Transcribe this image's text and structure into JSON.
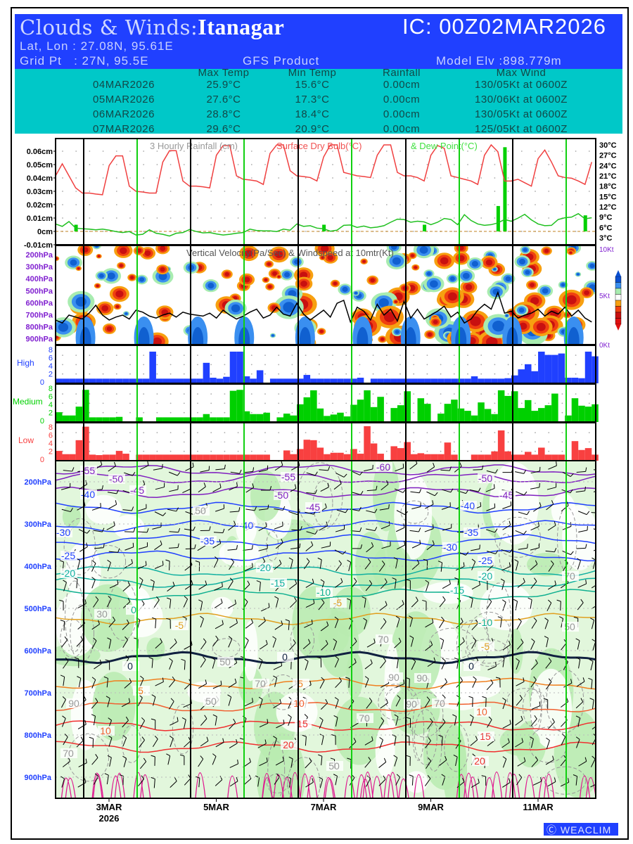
{
  "header": {
    "title_prefix": "Clouds & Winds:",
    "location": "Itanagar",
    "ic": "IC: 00Z02MAR2026",
    "latlon": "Lat, Lon : 27.08N, 95.61E",
    "grid": "Grid Pt   : 27N, 95.5E",
    "product": "GFS Product",
    "elev": "Model Elv :898.779m"
  },
  "summary": {
    "columns": [
      "Max Temp",
      "Min Temp",
      "Rainfall",
      "Max Wind"
    ],
    "rows": [
      [
        "04MAR2026",
        "25.9°C",
        "15.6°C",
        "0.00cm",
        "130/05Kt at 0600Z"
      ],
      [
        "05MAR2026",
        "27.6°C",
        "17.3°C",
        "0.00cm",
        "130/06Kt at 0600Z"
      ],
      [
        "06MAR2026",
        "28.8°C",
        "18.4°C",
        "0.00cm",
        "130/05Kt at 0600Z"
      ],
      [
        "07MAR2026",
        "29.6°C",
        "20.9°C",
        "0.00cm",
        "125/05Kt at 0600Z"
      ]
    ]
  },
  "chart_data": [
    {
      "type": "line",
      "title_parts": [
        "3 Hourly Rainfall (cm)",
        "Surface Dry Bulb(°C)",
        "& Dew Point(°C)"
      ],
      "step_hours": 3,
      "rain_ticks": [
        "0.06cm",
        "0.05cm",
        "0.04cm",
        "0.03cm",
        "0.02cm",
        "0.01cm",
        "0cm",
        "-0.01cm"
      ],
      "rain_ylim": [
        -0.01,
        0.065
      ],
      "temp_ticks": [
        "30°C",
        "27°C",
        "24°C",
        "21°C",
        "18°C",
        "15°C",
        "12°C",
        "9°C",
        "6°C",
        "3°C"
      ],
      "temp_ylim": [
        1.2,
        31.5
      ],
      "rain_bars": [
        {
          "step": 3,
          "cm": 0.005
        },
        {
          "step": 40,
          "cm": 0.005
        },
        {
          "step": 55,
          "cm": 0.005
        },
        {
          "step": 66,
          "cm": 0.019
        },
        {
          "step": 67,
          "cm": 0.063
        },
        {
          "step": 79,
          "cm": 0.012
        }
      ],
      "dry_bulb": [
        21,
        24.5,
        21,
        17.5,
        16,
        16,
        15.7,
        15.5,
        24,
        26.8,
        26.8,
        18,
        16.5,
        16.3,
        16,
        16,
        25,
        28.3,
        28.3,
        19.5,
        18,
        18,
        17.8,
        17.5,
        27,
        29.8,
        29.8,
        21,
        20,
        19.8,
        19.5,
        18.5,
        27.5,
        30,
        30,
        22.5,
        21,
        20.8,
        20.5,
        19.5,
        26.5,
        30,
        30,
        22,
        21.5,
        21,
        20.8,
        20.5,
        27,
        30,
        30,
        22,
        21,
        21,
        20.5,
        19.5,
        27,
        29.8,
        29,
        21,
        20.5,
        20,
        19.5,
        18.5,
        27,
        30,
        28,
        19.5,
        19.5,
        20,
        19,
        18,
        26,
        28.5,
        25,
        21,
        20.5,
        20.3,
        19.5,
        18.5,
        25
      ],
      "dew_point": [
        7,
        6.3,
        7.7,
        5.8,
        5.6,
        5.5,
        5.3,
        5.5,
        5.2,
        4.8,
        4.5,
        4.8,
        3.8,
        4,
        5.3,
        4.3,
        4,
        3.5,
        4.3,
        4.5,
        5.4,
        4.8,
        4.4,
        4.5,
        4.1,
        3.8,
        4,
        4.3,
        4.5,
        5.5,
        5.1,
        5,
        5,
        4.8,
        5.5,
        5.2,
        7,
        6.3,
        6.5,
        5.8,
        5.6,
        4.9,
        5.2,
        6.6,
        6.7,
        6,
        6.4,
        5.9,
        6.1,
        6.5,
        7.5,
        8.4,
        8.3,
        7.5,
        7.8,
        7.6,
        6.8,
        7.5,
        8.6,
        8.3,
        6.8,
        9.7,
        8,
        7,
        6.6,
        6.8,
        7.3,
        8.3,
        7.8,
        8.7,
        9.8,
        8.2,
        7,
        6.5,
        6.6,
        8.3,
        8.8,
        9,
        10,
        8.5,
        8.8
      ]
    },
    {
      "type": "heatmap",
      "title": "Vertical Velocity(Pa/Sec) & Windspeed at 10mtr(Kt)",
      "levels": [
        "200hPa",
        "300hPa",
        "400hPa",
        "500hPa",
        "600hPa",
        "700hPa",
        "800hPa",
        "900hPa"
      ],
      "wind_ticks": [
        "10Kt",
        "5Kt",
        "0Kt"
      ],
      "wind_ylim": [
        0,
        10
      ],
      "windspeed_10m": [
        2.5,
        2.2,
        3,
        2.8,
        2.6,
        3.2,
        4,
        3,
        2.5,
        2.8,
        3,
        2.6,
        3.5,
        3.3,
        2.9,
        2.7,
        3,
        3.2,
        2.8,
        3.3,
        3.1,
        3,
        2.9,
        3.2,
        2.7,
        3.5,
        3,
        2.6,
        2.9,
        3.3,
        3.6,
        2.7,
        3,
        3.8,
        3.1,
        2.9,
        4.2,
        3.1,
        2.5,
        3,
        3.5,
        2.8,
        4.2,
        4.5,
        2.3,
        3.8,
        3.4,
        2.5,
        4.1,
        3,
        3.6,
        2.4,
        4.4,
        2.7,
        3.6,
        2.6,
        3,
        3.4,
        3.9,
        2.8,
        3.3,
        2.2,
        2.6,
        3.5,
        4.1,
        3.6,
        5.3,
        3.2,
        3.4,
        2.7,
        3,
        3.2,
        3.6,
        2.9,
        3.4,
        3.1,
        3.8,
        2.9,
        3.5,
        2.7,
        2.3
      ],
      "colorbar": [
        "#0a4fd0",
        "#3a8ff0",
        "#a8ecb0",
        "#ffffff",
        "#f7a010",
        "#f04010",
        "#c81010",
        "#e01010"
      ]
    },
    {
      "type": "bar",
      "panels": [
        {
          "name": "High",
          "color": "#2040ff",
          "ticks": [
            "8",
            "6",
            "4",
            "2",
            "0"
          ],
          "ylim": [
            0,
            8
          ],
          "values": [
            1,
            1,
            1,
            1,
            1,
            1,
            1,
            1,
            1,
            1,
            1,
            1,
            1,
            1,
            6.8,
            1,
            1,
            1,
            1,
            1,
            1,
            1,
            4.4,
            1.2,
            1,
            1.4,
            6.8,
            6.8,
            1.5,
            1,
            2.8,
            0,
            1,
            1,
            1,
            1,
            1,
            1.8,
            1,
            1,
            1,
            1,
            1,
            1,
            1,
            1.2,
            0,
            1,
            1,
            1,
            1,
            1,
            1,
            1,
            1,
            1,
            1,
            1,
            1,
            1,
            1,
            1,
            1.5,
            1,
            1,
            1,
            1,
            1.1,
            1.7,
            3,
            4.1,
            2.6,
            6.8,
            6.1,
            6.1,
            6.4,
            1.2,
            1.2,
            1.1,
            6.8,
            5.8
          ]
        },
        {
          "name": "Medium",
          "color": "#00d000",
          "ticks": [
            "8",
            "6",
            "4",
            "2",
            "0"
          ],
          "ylim": [
            0,
            8
          ],
          "values": [
            2.1,
            1.4,
            1.4,
            3.3,
            6.9,
            1,
            1,
            1,
            1,
            1.1,
            0,
            0,
            1,
            0,
            0,
            1,
            1,
            1,
            1,
            1,
            1,
            1,
            1.7,
            1,
            1,
            1,
            6.7,
            6.9,
            2.3,
            1.7,
            1.7,
            2.0,
            0,
            1,
            1.8,
            1.4,
            3.8,
            5.3,
            6.8,
            2.9,
            1.3,
            1.6,
            2,
            1.2,
            3.7,
            4.8,
            6.8,
            3.2,
            5.4,
            0,
            3,
            3.6,
            6.6,
            0,
            5.1,
            3.9,
            0,
            1.8,
            3.9,
            4.8,
            2.9,
            2.4,
            1.4,
            4.2,
            2.8,
            1.7,
            6.8,
            5.6,
            6.6,
            3,
            4.7,
            2.4,
            3,
            3.6,
            6.1,
            0,
            1.4,
            5.1,
            3.5,
            3.3,
            3.8
          ]
        },
        {
          "name": "Low",
          "color": "#f84040",
          "ticks": [
            "8",
            "6",
            "4",
            "2",
            "0"
          ],
          "ylim": [
            0,
            8
          ],
          "values": [
            2.1,
            1.4,
            1.4,
            4.4,
            7.3,
            1.3,
            1.2,
            1.3,
            1.3,
            2.1,
            1.5,
            0,
            1.3,
            1.3,
            1.3,
            1.3,
            1.3,
            1.3,
            1.3,
            1.3,
            1.3,
            1.3,
            1.3,
            1.3,
            1.3,
            1.3,
            1.3,
            1.3,
            1.3,
            1.3,
            1.3,
            1.3,
            0,
            0,
            2.2,
            1.4,
            2.5,
            4.5,
            4.4,
            2.8,
            1.4,
            1.7,
            1.7,
            1.4,
            2.5,
            1.5,
            7.4,
            3.7,
            1.5,
            0,
            3.1,
            2.7,
            4,
            1.4,
            1.6,
            1.4,
            1.4,
            1.4,
            3.9,
            1.3,
            0,
            0,
            1.3,
            1.3,
            1.3,
            2,
            6.5,
            2,
            1.3,
            1.3,
            1.9,
            1.3,
            2.8,
            1.3,
            1.3,
            1.3,
            0,
            4.2,
            2.3,
            2.7,
            1.3
          ]
        }
      ]
    },
    {
      "type": "contour",
      "levels": [
        "200hPa",
        "300hPa",
        "400hPa",
        "500hPa",
        "600hPa",
        "700hPa",
        "800hPa",
        "900hPa"
      ],
      "contour_labels": [
        "-55",
        "-50",
        "-60",
        "-55",
        "-50",
        "-40",
        "-45",
        "-50",
        "-45",
        "-40",
        "-45",
        "-30",
        "-40",
        "-35",
        "-35",
        "-30",
        "-25",
        "-25",
        "-20",
        "-20",
        "-20",
        "-15",
        "-15",
        "-10",
        "-10",
        "0",
        "-5",
        "-5",
        "-5",
        "0",
        "0",
        "0",
        "5",
        "5",
        "10",
        "10",
        "10",
        "15",
        "15",
        "20",
        "20",
        "50",
        "70",
        "90",
        "50",
        "70",
        "30",
        "70",
        "90",
        "70",
        "90",
        "50",
        "70",
        "70",
        "90",
        "50",
        "50"
      ],
      "x_ticks": [
        "3MAR",
        "5MAR",
        "7MAR",
        "9MAR",
        "11MAR"
      ],
      "year": "2026"
    }
  ],
  "footer": {
    "badge": "WEACLIM"
  }
}
